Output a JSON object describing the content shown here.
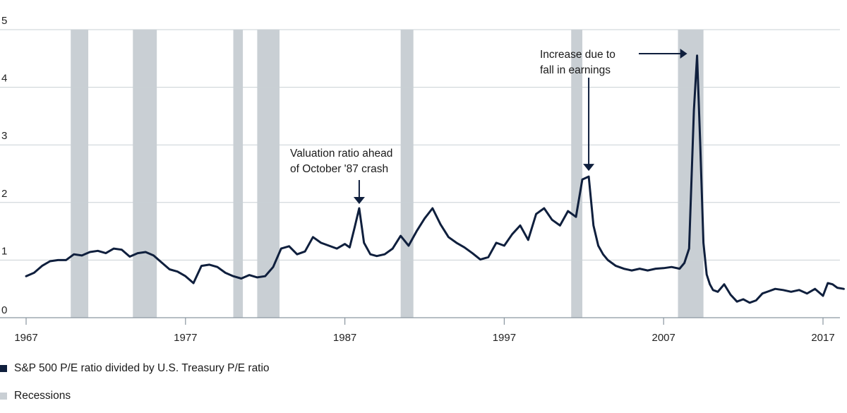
{
  "chart_data": {
    "type": "line",
    "title": "",
    "xlabel": "",
    "ylabel": "",
    "xlim": [
      1967,
      2018.5
    ],
    "ylim": [
      0,
      5
    ],
    "x_ticks": [
      "1967",
      "1977",
      "1987",
      "1997",
      "2007",
      "2017"
    ],
    "y_ticks": [
      "0",
      "1",
      "2",
      "3",
      "4",
      "5"
    ],
    "grid": "horizontal",
    "legend_position": "bottom-left",
    "colors": {
      "line": "#0f1f3d",
      "recession": "#c9cfd4",
      "grid": "#c9d0d5",
      "axis": "#8a96a0"
    },
    "series": [
      {
        "name": "S&P 500 P/E ratio divided by U.S. Treasury P/E ratio",
        "x": [
          1967.0,
          1967.5,
          1968.0,
          1968.5,
          1969.0,
          1969.5,
          1970.0,
          1970.5,
          1971.0,
          1971.5,
          1972.0,
          1972.5,
          1973.0,
          1973.5,
          1974.0,
          1974.5,
          1975.0,
          1975.5,
          1976.0,
          1976.5,
          1977.0,
          1977.5,
          1978.0,
          1978.5,
          1979.0,
          1979.5,
          1980.0,
          1980.5,
          1981.0,
          1981.5,
          1982.0,
          1982.5,
          1983.0,
          1983.5,
          1984.0,
          1984.5,
          1985.0,
          1985.5,
          1986.0,
          1986.5,
          1987.0,
          1987.3,
          1987.6,
          1987.9,
          1988.2,
          1988.6,
          1989.0,
          1989.5,
          1990.0,
          1990.5,
          1991.0,
          1991.5,
          1992.0,
          1992.5,
          1993.0,
          1993.5,
          1994.0,
          1994.5,
          1995.0,
          1995.5,
          1996.0,
          1996.5,
          1997.0,
          1997.5,
          1998.0,
          1998.5,
          1999.0,
          1999.5,
          2000.0,
          2000.5,
          2001.0,
          2001.5,
          2001.9,
          2002.3,
          2002.6,
          2002.9,
          2003.2,
          2003.5,
          2004.0,
          2004.5,
          2005.0,
          2005.5,
          2006.0,
          2006.5,
          2007.0,
          2007.5,
          2008.0,
          2008.3,
          2008.6,
          2008.9,
          2009.1,
          2009.3,
          2009.5,
          2009.7,
          2009.9,
          2010.1,
          2010.4,
          2010.8,
          2011.2,
          2011.6,
          2012.0,
          2012.4,
          2012.8,
          2013.2,
          2013.6,
          2014.0,
          2014.5,
          2015.0,
          2015.5,
          2016.0,
          2016.5,
          2017.0,
          2017.3,
          2017.6,
          2017.9,
          2018.3
        ],
        "values": [
          0.72,
          0.78,
          0.9,
          0.98,
          1.0,
          1.0,
          1.1,
          1.08,
          1.14,
          1.16,
          1.12,
          1.2,
          1.18,
          1.06,
          1.12,
          1.14,
          1.08,
          0.96,
          0.84,
          0.8,
          0.72,
          0.6,
          0.9,
          0.92,
          0.88,
          0.78,
          0.72,
          0.68,
          0.74,
          0.7,
          0.72,
          0.88,
          1.2,
          1.24,
          1.1,
          1.15,
          1.4,
          1.3,
          1.25,
          1.2,
          1.28,
          1.22,
          1.55,
          1.9,
          1.3,
          1.1,
          1.07,
          1.1,
          1.2,
          1.42,
          1.25,
          1.5,
          1.72,
          1.9,
          1.62,
          1.4,
          1.3,
          1.22,
          1.12,
          1.01,
          1.05,
          1.3,
          1.25,
          1.45,
          1.6,
          1.35,
          1.8,
          1.9,
          1.7,
          1.6,
          1.85,
          1.75,
          2.4,
          2.45,
          1.6,
          1.25,
          1.1,
          1.0,
          0.9,
          0.85,
          0.82,
          0.85,
          0.82,
          0.85,
          0.86,
          0.88,
          0.85,
          0.95,
          1.2,
          3.6,
          4.55,
          3.0,
          1.3,
          0.75,
          0.58,
          0.48,
          0.45,
          0.58,
          0.4,
          0.28,
          0.32,
          0.26,
          0.3,
          0.42,
          0.46,
          0.5,
          0.48,
          0.45,
          0.48,
          0.42,
          0.5,
          0.38,
          0.6,
          0.58,
          0.52,
          0.5
        ]
      }
    ],
    "recessions_label": "Recessions",
    "recessions": [
      [
        1969.8,
        1970.9
      ],
      [
        1973.7,
        1975.2
      ],
      [
        1980.0,
        1980.6
      ],
      [
        1981.5,
        1982.9
      ],
      [
        1990.5,
        1991.3
      ],
      [
        2001.2,
        2001.9
      ],
      [
        2007.9,
        2009.5
      ]
    ],
    "annotations": [
      {
        "lines": [
          "Valuation ratio ahead",
          "of October '87 crash"
        ],
        "x": 1987.9,
        "y": 1.9
      },
      {
        "lines": [
          "Increase due to",
          "fall in earnings"
        ],
        "x": 2002.3,
        "y": 2.45
      }
    ]
  }
}
